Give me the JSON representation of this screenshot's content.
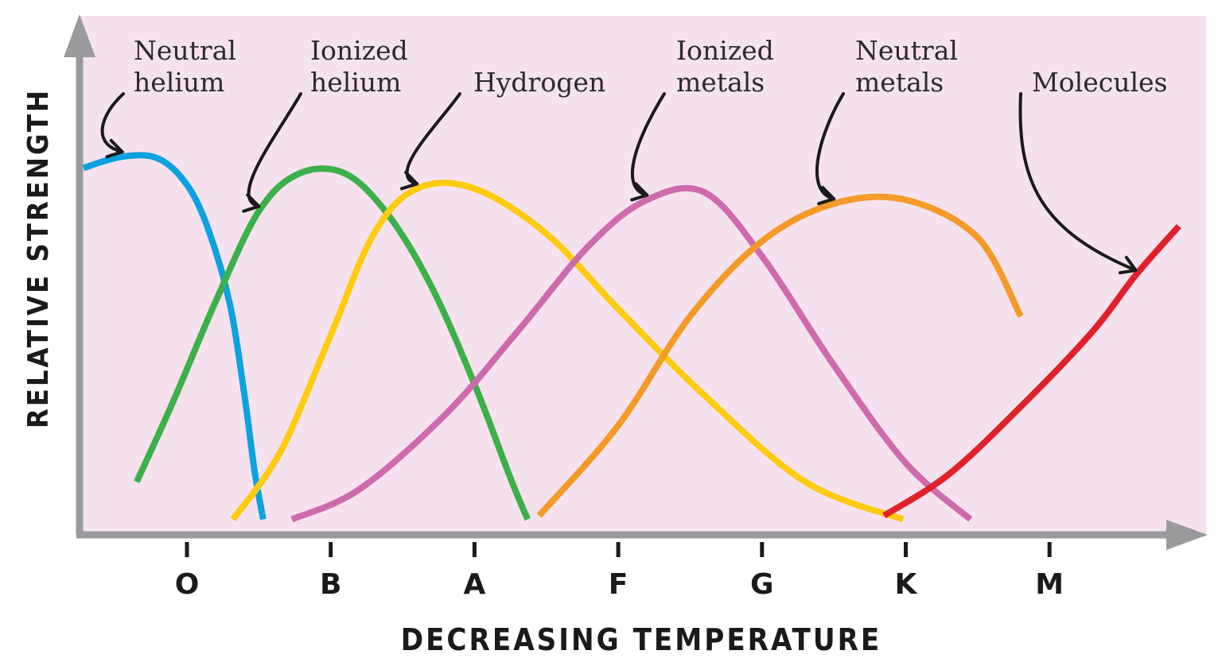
{
  "chart_data": {
    "type": "line",
    "title": "",
    "xlabel": "DECREASING TEMPERATURE",
    "ylabel": "RELATIVE STRENGTH",
    "categories": [
      "O",
      "B",
      "A",
      "F",
      "G",
      "K",
      "M"
    ],
    "x_range": [
      -0.75,
      6.9
    ],
    "y_range": [
      0,
      1
    ],
    "grid": false,
    "legend": "none",
    "background_color": "#f5e2ee",
    "axis_color": "#9a9a9c",
    "series": [
      {
        "name": "Neutral helium",
        "color": "#0ca2df",
        "points": [
          [
            -0.72,
            0.955
          ],
          [
            -0.45,
            0.985
          ],
          [
            -0.2,
            0.98
          ],
          [
            0.0,
            0.91
          ],
          [
            0.15,
            0.79
          ],
          [
            0.3,
            0.59
          ],
          [
            0.4,
            0.35
          ],
          [
            0.47,
            0.15
          ],
          [
            0.53,
            0.02
          ]
        ]
      },
      {
        "name": "Ionized helium",
        "color": "#3cb04a",
        "points": [
          [
            -0.35,
            0.12
          ],
          [
            -0.1,
            0.33
          ],
          [
            0.2,
            0.6
          ],
          [
            0.5,
            0.84
          ],
          [
            0.78,
            0.94
          ],
          [
            1.1,
            0.94
          ],
          [
            1.4,
            0.83
          ],
          [
            1.7,
            0.64
          ],
          [
            2.0,
            0.38
          ],
          [
            2.25,
            0.13
          ],
          [
            2.37,
            0.02
          ]
        ]
      },
      {
        "name": "Ionized helium",
        "color": "#3cb04a",
        "points": [
          [
            -0.35,
            0.12
          ],
          [
            -0.1,
            0.33
          ],
          [
            0.2,
            0.6
          ],
          [
            0.5,
            0.84
          ],
          [
            0.78,
            0.94
          ],
          [
            1.1,
            0.94
          ],
          [
            1.4,
            0.83
          ],
          [
            1.7,
            0.64
          ],
          [
            2.0,
            0.38
          ],
          [
            2.25,
            0.13
          ],
          [
            2.37,
            0.02
          ]
        ]
      },
      {
        "name": "Hydrogen",
        "color": "#fdcb10",
        "points": [
          [
            0.32,
            0.02
          ],
          [
            0.65,
            0.2
          ],
          [
            1.0,
            0.51
          ],
          [
            1.3,
            0.78
          ],
          [
            1.6,
            0.9
          ],
          [
            2.0,
            0.9
          ],
          [
            2.5,
            0.78
          ],
          [
            3.0,
            0.58
          ],
          [
            3.6,
            0.35
          ],
          [
            4.3,
            0.12
          ],
          [
            4.98,
            0.02
          ]
        ]
      },
      {
        "name": "Ionized metals",
        "color": "#cf6aac",
        "points": [
          [
            0.73,
            0.02
          ],
          [
            1.2,
            0.1
          ],
          [
            1.8,
            0.3
          ],
          [
            2.3,
            0.52
          ],
          [
            2.8,
            0.75
          ],
          [
            3.2,
            0.87
          ],
          [
            3.6,
            0.89
          ],
          [
            4.0,
            0.72
          ],
          [
            4.5,
            0.43
          ],
          [
            5.0,
            0.17
          ],
          [
            5.45,
            0.02
          ]
        ]
      },
      {
        "name": "Neutral metals",
        "color": "#f39a28",
        "points": [
          [
            2.45,
            0.03
          ],
          [
            3.0,
            0.27
          ],
          [
            3.5,
            0.56
          ],
          [
            4.0,
            0.76
          ],
          [
            4.5,
            0.86
          ],
          [
            5.0,
            0.87
          ],
          [
            5.5,
            0.77
          ],
          [
            5.8,
            0.56
          ]
        ]
      },
      {
        "name": "Molecules",
        "color": "#e02129",
        "points": [
          [
            4.85,
            0.03
          ],
          [
            5.3,
            0.14
          ],
          [
            5.8,
            0.32
          ],
          [
            6.3,
            0.52
          ],
          [
            6.6,
            0.67
          ],
          [
            6.9,
            0.8
          ]
        ]
      }
    ],
    "annotations": [
      {
        "lines": [
          "Neutral",
          "helium"
        ],
        "series": 0,
        "target_x": -0.45
      },
      {
        "lines": [
          "Ionized",
          "helium"
        ],
        "series": 1,
        "target_x": 0.5
      },
      {
        "lines": [
          "Hydrogen"
        ],
        "series": 3,
        "target_x": 1.6
      },
      {
        "lines": [
          "Ionized",
          "metals"
        ],
        "series": 4,
        "target_x": 3.2
      },
      {
        "lines": [
          "Neutral",
          "metals"
        ],
        "series": 5,
        "target_x": 4.5
      },
      {
        "lines": [
          "Molecules"
        ],
        "series": 6,
        "target_x": 6.6
      }
    ]
  }
}
